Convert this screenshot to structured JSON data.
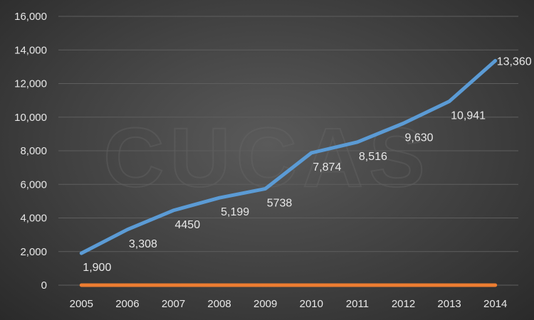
{
  "watermark": "CUCAS",
  "chart_data": {
    "type": "line",
    "categories": [
      "2005",
      "2006",
      "2007",
      "2008",
      "2009",
      "2010",
      "2011",
      "2012",
      "2013",
      "2014"
    ],
    "series": [
      {
        "values": [
          1900,
          3308,
          4450,
          5199,
          5738,
          7874,
          8516,
          9630,
          10941,
          13360
        ],
        "data_labels": [
          "1,900",
          "3,308",
          "4450",
          "5,199",
          "5738",
          "7,874",
          "8,516",
          "9,630",
          "10,941",
          "13,360"
        ],
        "color": "#5b9bd5"
      },
      {
        "values": [
          0,
          0,
          0,
          0,
          0,
          0,
          0,
          0,
          0,
          0
        ],
        "color": "#ed7d31"
      }
    ],
    "y_ticks": [
      "0",
      "2,000",
      "4,000",
      "6,000",
      "8,000",
      "10,000",
      "12,000",
      "14,000",
      "16,000"
    ],
    "ylim": [
      0,
      16000
    ],
    "grid": true,
    "legend": "none",
    "title": "",
    "xlabel": "",
    "ylabel": ""
  },
  "colors": {
    "gridline": "#5e5e5e",
    "text": "#e8e8e8"
  }
}
